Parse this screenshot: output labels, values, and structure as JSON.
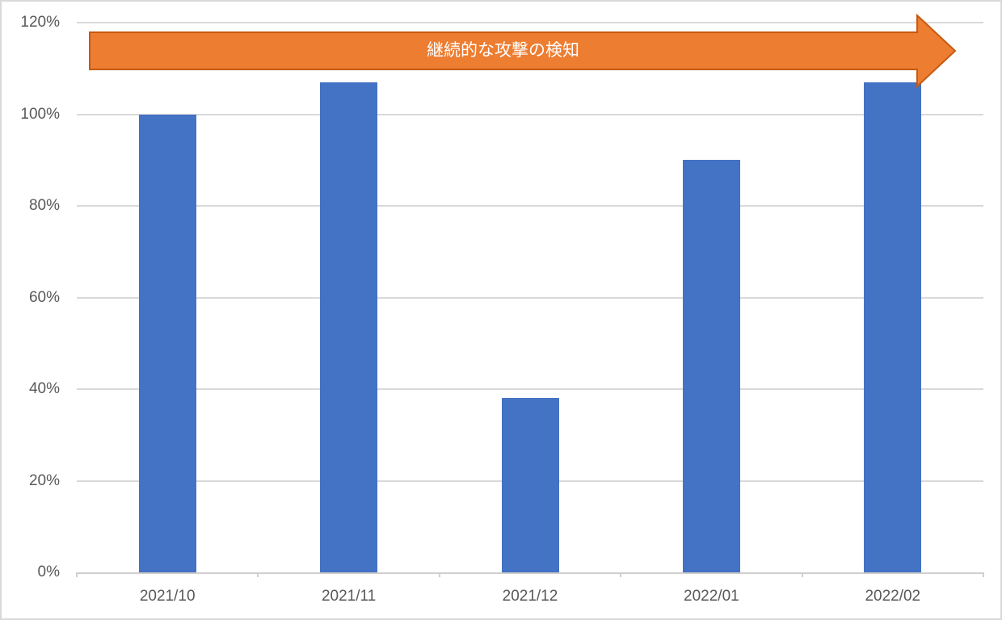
{
  "chart_data": {
    "type": "bar",
    "categories": [
      "2021/10",
      "2021/11",
      "2021/12",
      "2022/01",
      "2022/02"
    ],
    "values": [
      100,
      107,
      38,
      90,
      107
    ],
    "title": "",
    "xlabel": "",
    "ylabel": "",
    "ylim": [
      0,
      120
    ],
    "y_tick_values": [
      0,
      20,
      40,
      60,
      80,
      100,
      120
    ],
    "y_tick_labels": [
      "0%",
      "20%",
      "40%",
      "60%",
      "80%",
      "100%",
      "120%"
    ],
    "grid": true,
    "legend": "none",
    "bar_color": "#4472C4",
    "gridline_color": "#D9D9D9",
    "axis_label_color": "#595959"
  },
  "annotation": {
    "label": "継続的な攻撃の検知",
    "shape": "right-arrow",
    "fill_color": "#ED7D31",
    "border_color": "#C55A11",
    "text_color": "#FFFFFF"
  }
}
